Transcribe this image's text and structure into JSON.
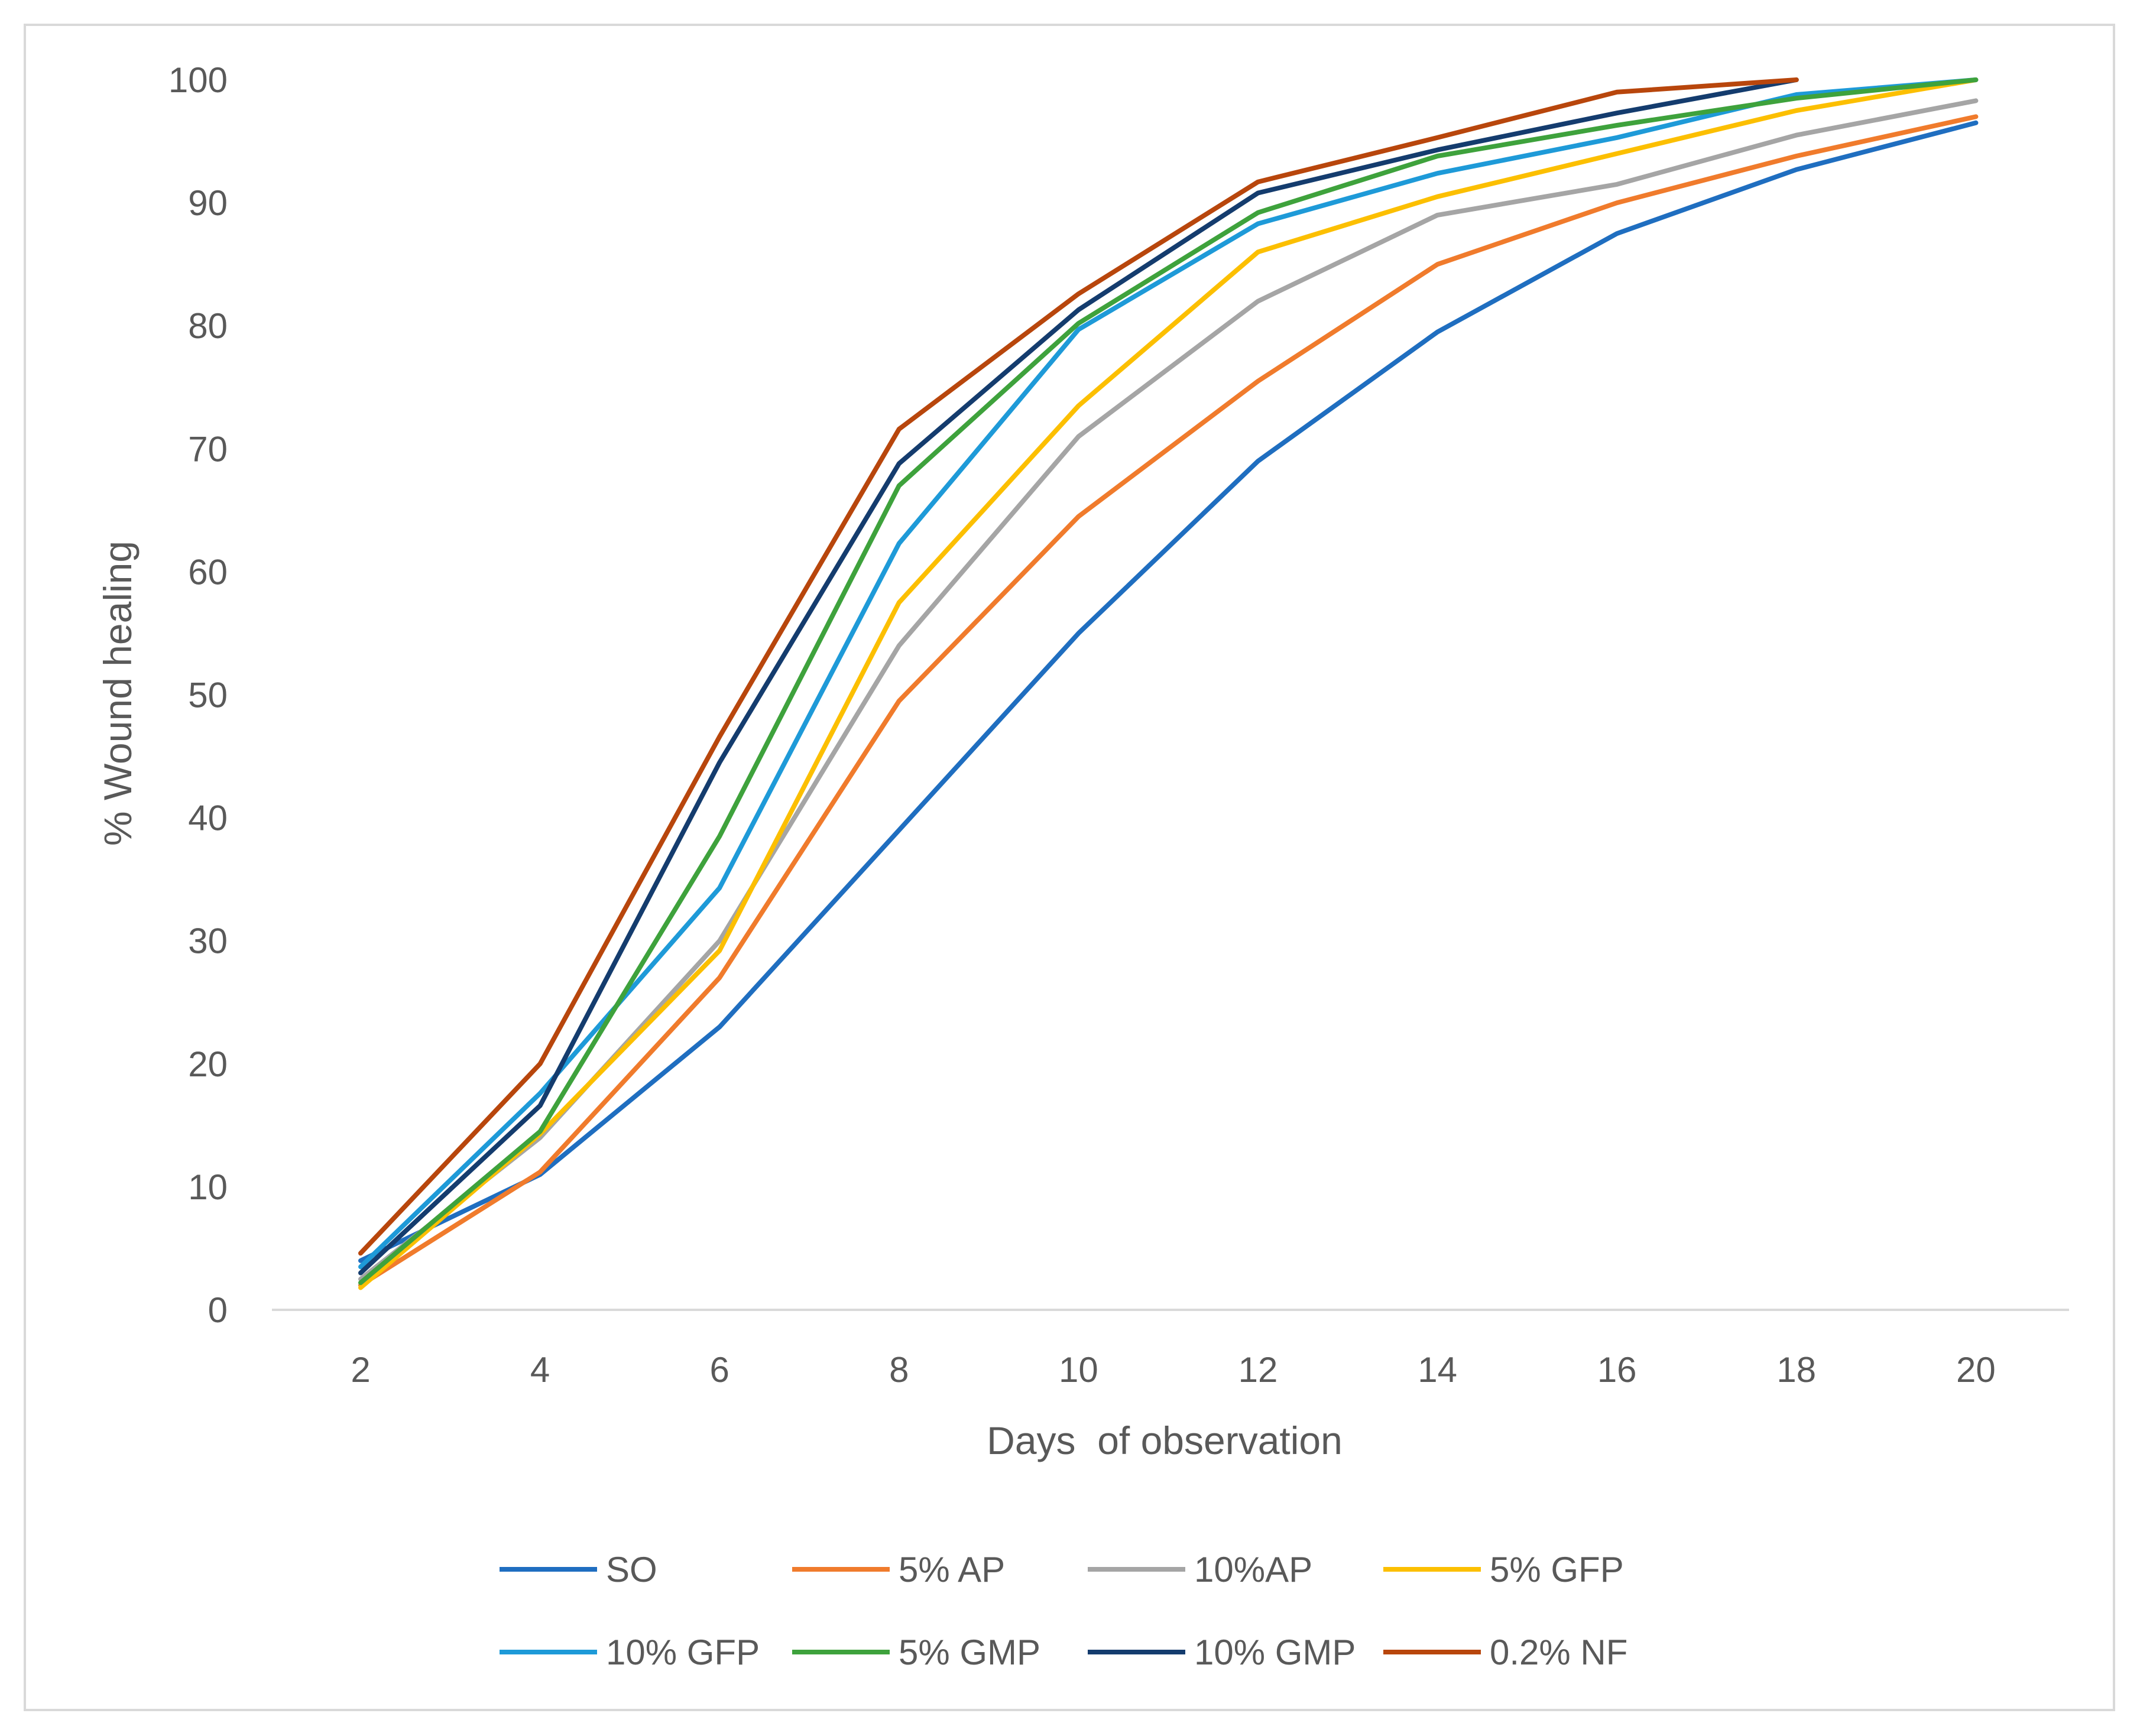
{
  "chart_data": {
    "type": "line",
    "title": "",
    "xlabel": "Days  of observation",
    "ylabel": "% Wound healing",
    "x": [
      2,
      4,
      6,
      8,
      10,
      12,
      14,
      16,
      18,
      20
    ],
    "x_ticks": [
      "2",
      "4",
      "6",
      "8",
      "10",
      "12",
      "14",
      "16",
      "18",
      "20"
    ],
    "y_ticks": [
      "0",
      "10",
      "20",
      "30",
      "40",
      "50",
      "60",
      "70",
      "80",
      "90",
      "100"
    ],
    "ylim": [
      0,
      100
    ],
    "grid": false,
    "legend_position": "bottom",
    "series": [
      {
        "name": "SO",
        "color": "#1f6ec0",
        "values": [
          4,
          11,
          23,
          39,
          55,
          69,
          79.5,
          87.5,
          92.7,
          96.5
        ]
      },
      {
        "name": "5% AP",
        "color": "#f07b2c",
        "values": [
          2,
          11.2,
          27,
          49.5,
          64.5,
          75.5,
          85,
          90,
          93.8,
          97
        ]
      },
      {
        "name": "10%AP",
        "color": "#a5a5a5",
        "values": [
          2.5,
          14,
          30,
          54,
          71,
          82,
          89,
          91.5,
          95.5,
          98.3
        ]
      },
      {
        "name": "5% GFP",
        "color": "#fcbf00",
        "values": [
          1.8,
          14.3,
          29.2,
          57.5,
          73.5,
          86,
          90.5,
          94,
          97.5,
          100
        ]
      },
      {
        "name": "10% GFP",
        "color": "#1e9ad8",
        "values": [
          3.5,
          17.6,
          34.3,
          62.3,
          79.7,
          88.3,
          92.4,
          95.3,
          98.8,
          100
        ]
      },
      {
        "name": "5% GMP",
        "color": "#3ea23c",
        "values": [
          2.2,
          14.5,
          38.5,
          67,
          80.2,
          89.2,
          93.8,
          96.3,
          98.5,
          100
        ]
      },
      {
        "name": "10% GMP",
        "color": "#143c6e",
        "values": [
          3,
          16.6,
          44.5,
          68.8,
          81.3,
          90.8,
          94.3,
          97.3,
          100,
          null
        ]
      },
      {
        "name": "0.2% NF",
        "color": "#b8460c",
        "values": [
          4.6,
          20,
          46.6,
          71.6,
          82.6,
          91.7,
          95.3,
          99,
          100,
          null
        ]
      }
    ]
  }
}
